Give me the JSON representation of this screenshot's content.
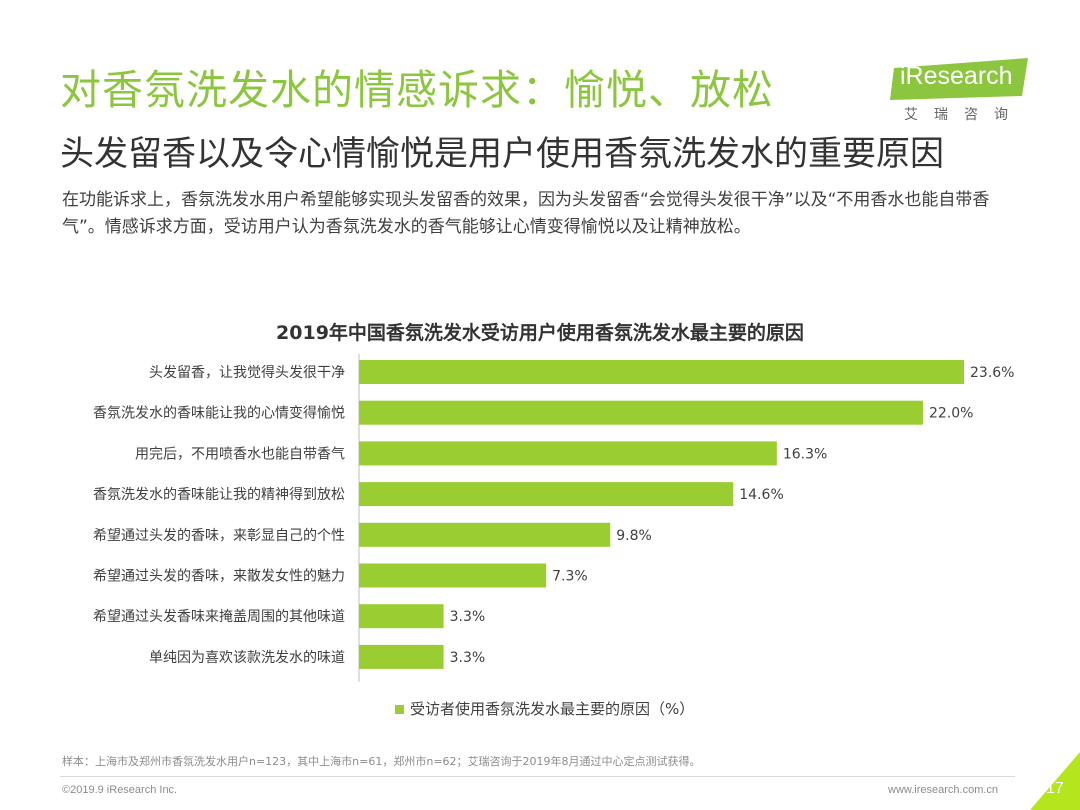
{
  "title": "对香氛洗发水的情感诉求：愉悦、放松",
  "subtitle": "头发留香以及令心情愉悦是用户使用香氛洗发水的重要原因",
  "description": "在功能诉求上，香氛洗发水用户希望能够实现头发留香的效果，因为头发留香“会觉得头发很干净”以及“不用香水也能自带香气”。情感诉求方面，受访用户认为香氛洗发水的香气能够让心情变得愉悦以及让精神放松。",
  "logo": {
    "text": "iResearch",
    "cn": "艾瑞咨询"
  },
  "colors": {
    "accent": "#8cc63f",
    "bar": "#9acd32",
    "corner": "#b5e61d"
  },
  "chart_data": {
    "type": "bar",
    "orientation": "horizontal",
    "title": "2019年中国香氛洗发水受访用户使用香氛洗发水最主要的原因",
    "categories": [
      "头发留香，让我觉得头发很干净",
      "香氛洗发水的香味能让我的心情变得愉悦",
      "用完后，不用喷香水也能自带香气",
      "香氛洗发水的香味能让我的精神得到放松",
      "希望通过头发的香味，来彰显自己的个性",
      "希望通过头发的香味，来散发女性的魅力",
      "希望通过头发香味来掩盖周围的其他味道",
      "单纯因为喜欢该款洗发水的味道"
    ],
    "series": [
      {
        "name": "受访者使用香氛洗发水最主要的原因（%）",
        "values": [
          23.6,
          22.0,
          16.3,
          14.6,
          9.8,
          7.3,
          3.3,
          3.3
        ]
      }
    ],
    "value_labels": [
      "23.6%",
      "22.0%",
      "16.3%",
      "14.6%",
      "9.8%",
      "7.3%",
      "3.3%",
      "3.3%"
    ],
    "xlim": [
      0,
      25
    ],
    "grid": false,
    "legend_position": "bottom"
  },
  "legend": {
    "label": "受访者使用香氛洗发水最主要的原因（%）"
  },
  "note": "样本：上海市及郑州市香氛洗发水用户n=123，其中上海市n=61，郑州市n=62；艾瑞咨询于2019年8月通过中心定点测试获得。",
  "copyright": "©2019.9 iResearch Inc.",
  "url": "www.iresearch.com.cn",
  "page_number": "17"
}
